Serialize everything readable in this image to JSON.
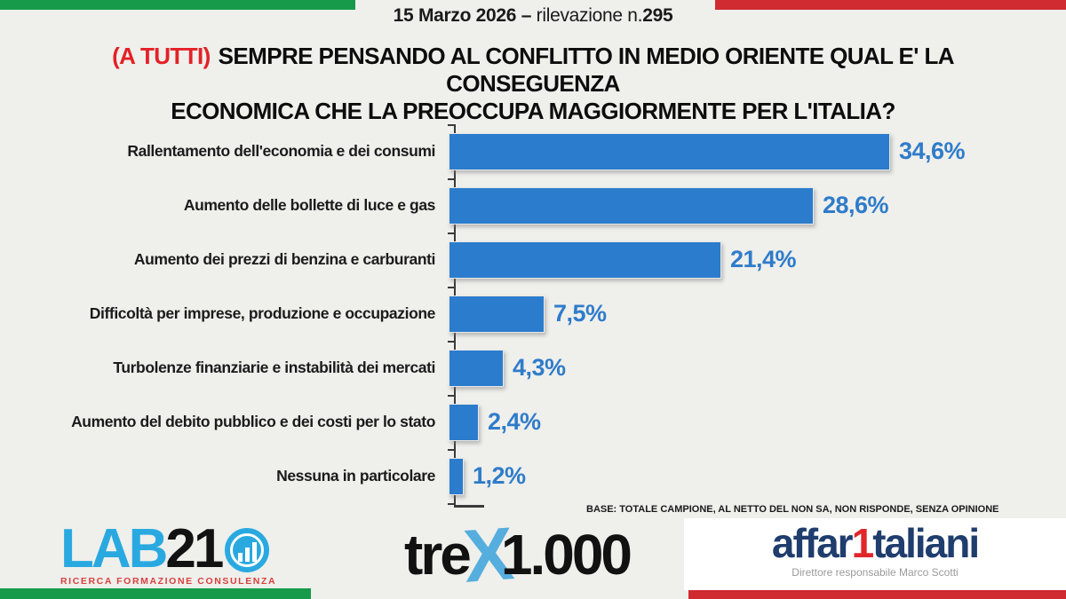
{
  "header": {
    "date_bold": "15 Marzo 2026 –",
    "date_plain": " rilevazione n.",
    "date_num": "295"
  },
  "title": {
    "prefix": "(A TUTTI)",
    "line1": "SEMPRE PENSANDO AL CONFLITTO IN MEDIO ORIENTE QUAL E' LA CONSEGUENZA",
    "line2": "ECONOMICA CHE LA PREOCCUPA MAGGIORMENTE PER L'ITALIA?"
  },
  "chart_data": {
    "type": "bar",
    "orientation": "horizontal",
    "categories": [
      "Rallentamento dell'economia e dei consumi",
      "Aumento delle bollette di luce e gas",
      "Aumento dei prezzi di benzina e carburanti",
      "Difficoltà per imprese, produzione e occupazione",
      "Turbolenze finanziarie e instabilità dei mercati",
      "Aumento del debito pubblico e dei costi per lo stato",
      "Nessuna in particolare"
    ],
    "values": [
      34.6,
      28.6,
      21.4,
      7.5,
      4.3,
      2.4,
      1.2
    ],
    "value_labels": [
      "34,6%",
      "28,6%",
      "21,4%",
      "7,5%",
      "4,3%",
      "2,4%",
      "1,2%"
    ],
    "xlim": [
      0,
      36
    ],
    "bar_color": "#2b7ccd",
    "value_label_color": "#2f7cca",
    "grid": false,
    "legend": false
  },
  "footnote": "BASE: TOTALE CAMPIONE, AL NETTO DEL NON SA, NON RISPONDE, SENZA OPINIONE",
  "footer": {
    "lab21": {
      "part_blue": "LAB",
      "part_black": "21",
      "subtext": "RICERCA FORMAZIONE CONSULENZA"
    },
    "trex": {
      "part1": "tre",
      "x": "X",
      "part2": "1.000"
    },
    "affaritaliani": {
      "part1": "affar",
      "one": "1",
      "part2": "taliani",
      "subtext": "Direttore responsabile Marco Scotti"
    }
  },
  "colors": {
    "flag_green": "#179a49",
    "flag_red": "#cf2b31",
    "title_red": "#e32126",
    "background": "#efefec",
    "lab21_blue": "#2aa9e1",
    "affari_navy": "#1f3d6d",
    "affari_red": "#e0262b"
  }
}
